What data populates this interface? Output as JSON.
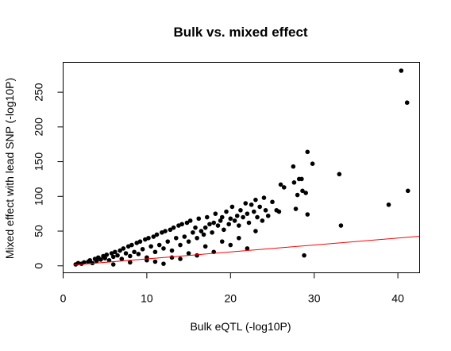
{
  "chart_data": {
    "type": "scatter",
    "title": "Bulk vs. mixed effect",
    "xlabel": "Bulk eQTL (-log10P)",
    "ylabel": "Mixed effect with lead SNP (-log10P)",
    "xlim": [
      0,
      42.6
    ],
    "ylim": [
      -10,
      293
    ],
    "xticks": [
      "0",
      "10",
      "20",
      "30",
      "40"
    ],
    "yticks": [
      "0",
      "50",
      "100",
      "150",
      "200",
      "250"
    ],
    "grid": false,
    "point_color": "#000000",
    "line_color": "#ff0000",
    "reference_line": {
      "intercept": 0,
      "slope": 1
    },
    "series": [
      {
        "points": [
          [
            1.5,
            2
          ],
          [
            1.8,
            4
          ],
          [
            2.2,
            3
          ],
          [
            2.5,
            5
          ],
          [
            3,
            6
          ],
          [
            3.2,
            8
          ],
          [
            3.5,
            4
          ],
          [
            3.8,
            10
          ],
          [
            4,
            7
          ],
          [
            4.2,
            12
          ],
          [
            4.5,
            9
          ],
          [
            4.8,
            14
          ],
          [
            5,
            11
          ],
          [
            5.2,
            16
          ],
          [
            5.5,
            8
          ],
          [
            5.8,
            18
          ],
          [
            6,
            13
          ],
          [
            6.2,
            20
          ],
          [
            6.5,
            15
          ],
          [
            6.8,
            22
          ],
          [
            7,
            10
          ],
          [
            7.2,
            25
          ],
          [
            7.5,
            18
          ],
          [
            7.8,
            28
          ],
          [
            8,
            14
          ],
          [
            8.2,
            30
          ],
          [
            8.5,
            20
          ],
          [
            8.8,
            33
          ],
          [
            9,
            17
          ],
          [
            9.2,
            35
          ],
          [
            9.5,
            24
          ],
          [
            9.8,
            38
          ],
          [
            10,
            12
          ],
          [
            10.2,
            40
          ],
          [
            10.5,
            28
          ],
          [
            10.8,
            42
          ],
          [
            11,
            20
          ],
          [
            11.2,
            45
          ],
          [
            11.5,
            30
          ],
          [
            11.8,
            48
          ],
          [
            12,
            25
          ],
          [
            12.2,
            50
          ],
          [
            12.5,
            35
          ],
          [
            12.8,
            52
          ],
          [
            13,
            22
          ],
          [
            13.2,
            55
          ],
          [
            13.5,
            40
          ],
          [
            13.8,
            58
          ],
          [
            14,
            30
          ],
          [
            14.2,
            60
          ],
          [
            14.5,
            42
          ],
          [
            14.8,
            62
          ],
          [
            15,
            35
          ],
          [
            15.2,
            65
          ],
          [
            15.5,
            48
          ],
          [
            15.8,
            55
          ],
          [
            16,
            40
          ],
          [
            16.2,
            68
          ],
          [
            16.5,
            50
          ],
          [
            16.8,
            45
          ],
          [
            17,
            55
          ],
          [
            17.2,
            70
          ],
          [
            17.5,
            60
          ],
          [
            17.8,
            48
          ],
          [
            18,
            62
          ],
          [
            18.2,
            75
          ],
          [
            18.5,
            58
          ],
          [
            18.8,
            65
          ],
          [
            19,
            70
          ],
          [
            19.2,
            52
          ],
          [
            19.5,
            78
          ],
          [
            19.8,
            60
          ],
          [
            20,
            68
          ],
          [
            20.2,
            85
          ],
          [
            20.5,
            65
          ],
          [
            20.8,
            72
          ],
          [
            21,
            58
          ],
          [
            21.2,
            80
          ],
          [
            21.5,
            70
          ],
          [
            21.8,
            90
          ],
          [
            22,
            75
          ],
          [
            22.2,
            62
          ],
          [
            22.5,
            88
          ],
          [
            22.8,
            78
          ],
          [
            23,
            95
          ],
          [
            23.2,
            70
          ],
          [
            23.5,
            85
          ],
          [
            23.8,
            65
          ],
          [
            24,
            98
          ],
          [
            24.2,
            80
          ],
          [
            24.5,
            72
          ],
          [
            25,
            92
          ],
          [
            25.5,
            80
          ],
          [
            25.8,
            78
          ],
          [
            26,
            117
          ],
          [
            26.4,
            113
          ],
          [
            27.5,
            143
          ],
          [
            27.6,
            120
          ],
          [
            27.8,
            82
          ],
          [
            28,
            102
          ],
          [
            28.2,
            125
          ],
          [
            28.5,
            125
          ],
          [
            28.6,
            108
          ],
          [
            29,
            105
          ],
          [
            28.8,
            15
          ],
          [
            29.2,
            164
          ],
          [
            29.2,
            74
          ],
          [
            29.8,
            147
          ],
          [
            33,
            132
          ],
          [
            33.2,
            58
          ],
          [
            38.9,
            88
          ],
          [
            40.4,
            281
          ],
          [
            41.1,
            235
          ],
          [
            41.2,
            108
          ],
          [
            6,
            2
          ],
          [
            8,
            5
          ],
          [
            10,
            8
          ],
          [
            12,
            3
          ],
          [
            14,
            10
          ],
          [
            16,
            15
          ],
          [
            18,
            20
          ],
          [
            20,
            30
          ],
          [
            22,
            25
          ],
          [
            15,
            18
          ],
          [
            17,
            28
          ],
          [
            19,
            35
          ],
          [
            21,
            40
          ],
          [
            23,
            50
          ],
          [
            13,
            12
          ],
          [
            11,
            6
          ]
        ]
      }
    ]
  }
}
